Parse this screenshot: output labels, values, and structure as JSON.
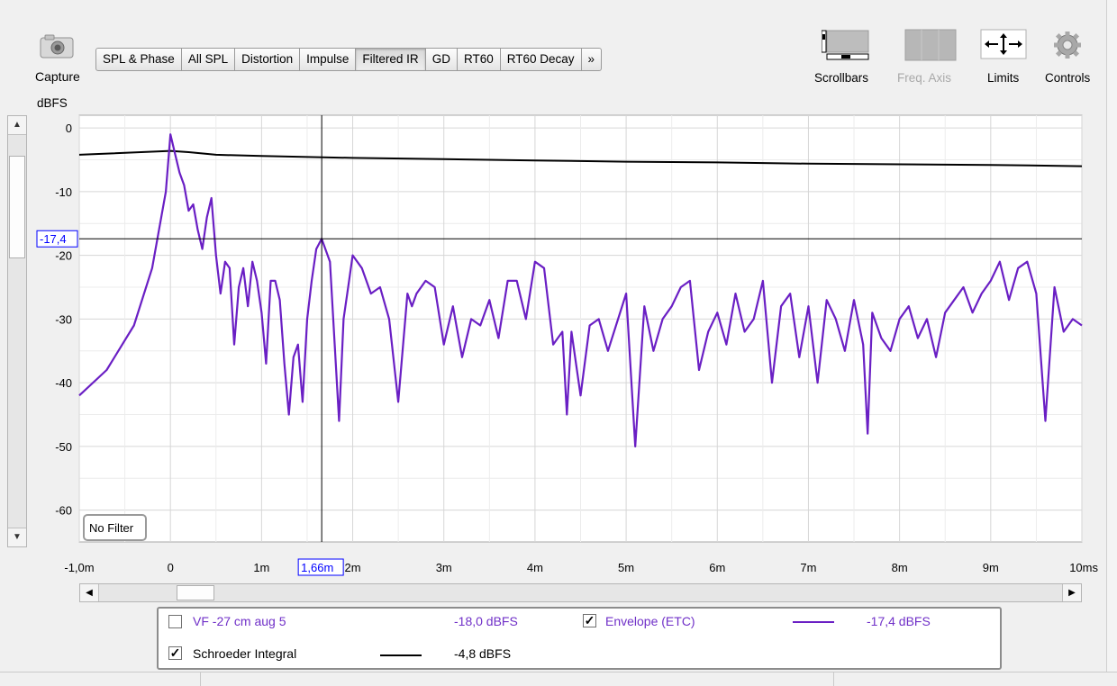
{
  "capture": {
    "label": "Capture",
    "icon": "camera-icon"
  },
  "tabs": [
    {
      "label": "SPL & Phase",
      "active": false
    },
    {
      "label": "All SPL",
      "active": false
    },
    {
      "label": "Distortion",
      "active": false
    },
    {
      "label": "Impulse",
      "active": false
    },
    {
      "label": "Filtered IR",
      "active": true
    },
    {
      "label": "GD",
      "active": false
    },
    {
      "label": "RT60",
      "active": false
    },
    {
      "label": "RT60 Decay",
      "active": false
    },
    {
      "label": "»",
      "active": false
    }
  ],
  "toolbar": {
    "scrollbars": "Scrollbars",
    "freq_axis": "Freq. Axis",
    "limits": "Limits",
    "controls": "Controls"
  },
  "plot": {
    "y_unit": "dBFS",
    "filter_label": "No Filter",
    "cursor_y_label": "-17,4",
    "cursor_x_label": "1,66m",
    "y_ticks": [
      "0",
      "-10",
      "-20",
      "-30",
      "-40",
      "-50",
      "-60"
    ],
    "x_ticks": [
      "-1,0m",
      "0",
      "1m",
      "2m",
      "3m",
      "4m",
      "5m",
      "6m",
      "7m",
      "8m",
      "9m",
      "10ms"
    ],
    "colors": {
      "envelope": "#6a1fc4",
      "schroeder": "#000000",
      "cursor_box": "#0000ff"
    }
  },
  "legend": {
    "vf": {
      "label": "VF -27 cm aug 5",
      "value": "-18,0 dBFS",
      "checked": false,
      "color": "#7030c8"
    },
    "envelope": {
      "label": "Envelope (ETC)",
      "value": "-17,4 dBFS",
      "checked": true,
      "color": "#7030c8"
    },
    "schroeder": {
      "label": "Schroeder Integral",
      "value": "-4,8 dBFS",
      "checked": true,
      "color": "#000000"
    }
  },
  "chart_data": {
    "type": "line",
    "xlabel": "",
    "ylabel": "dBFS",
    "xlim": [
      -1.0,
      10.0
    ],
    "ylim": [
      -65,
      2
    ],
    "series": [
      {
        "name": "Envelope (ETC)",
        "x": [
          -1.0,
          -0.7,
          -0.4,
          -0.2,
          -0.05,
          0.0,
          0.05,
          0.1,
          0.15,
          0.2,
          0.25,
          0.3,
          0.35,
          0.4,
          0.45,
          0.5,
          0.55,
          0.6,
          0.65,
          0.7,
          0.75,
          0.8,
          0.85,
          0.9,
          0.95,
          1.0,
          1.05,
          1.1,
          1.15,
          1.2,
          1.25,
          1.3,
          1.35,
          1.4,
          1.45,
          1.5,
          1.55,
          1.6,
          1.66,
          1.75,
          1.85,
          1.9,
          1.95,
          2.0,
          2.1,
          2.2,
          2.3,
          2.4,
          2.5,
          2.6,
          2.65,
          2.7,
          2.8,
          2.9,
          3.0,
          3.1,
          3.2,
          3.3,
          3.4,
          3.5,
          3.6,
          3.7,
          3.8,
          3.9,
          4.0,
          4.1,
          4.2,
          4.3,
          4.35,
          4.4,
          4.5,
          4.6,
          4.7,
          4.8,
          5.0,
          5.1,
          5.2,
          5.3,
          5.4,
          5.5,
          5.6,
          5.7,
          5.8,
          5.9,
          6.0,
          6.1,
          6.2,
          6.3,
          6.4,
          6.5,
          6.6,
          6.7,
          6.8,
          6.9,
          7.0,
          7.1,
          7.2,
          7.3,
          7.4,
          7.5,
          7.6,
          7.65,
          7.7,
          7.8,
          7.9,
          8.0,
          8.1,
          8.2,
          8.3,
          8.4,
          8.5,
          8.6,
          8.7,
          8.8,
          8.9,
          9.0,
          9.1,
          9.2,
          9.3,
          9.4,
          9.5,
          9.6,
          9.7,
          9.8,
          9.9,
          10.0
        ],
        "y": [
          -42,
          -38,
          -31,
          -22,
          -10,
          -1,
          -4,
          -7,
          -9,
          -13,
          -12,
          -16,
          -19,
          -14,
          -11,
          -20,
          -26,
          -21,
          -22,
          -34,
          -25,
          -22,
          -28,
          -21,
          -24,
          -29,
          -37,
          -24,
          -24,
          -27,
          -37,
          -45,
          -36,
          -34,
          -43,
          -30,
          -24,
          -19,
          -17.4,
          -21,
          -46,
          -30,
          -25,
          -20,
          -22,
          -26,
          -25,
          -30,
          -43,
          -26,
          -28,
          -26,
          -24,
          -25,
          -34,
          -28,
          -36,
          -30,
          -31,
          -27,
          -33,
          -24,
          -24,
          -30,
          -21,
          -22,
          -34,
          -32,
          -45,
          -32,
          -42,
          -31,
          -30,
          -35,
          -26,
          -50,
          -28,
          -35,
          -30,
          -28,
          -25,
          -24,
          -38,
          -32,
          -29,
          -34,
          -26,
          -32,
          -30,
          -24,
          -40,
          -28,
          -26,
          -36,
          -28,
          -40,
          -27,
          -30,
          -35,
          -27,
          -34,
          -48,
          -29,
          -33,
          -35,
          -30,
          -28,
          -33,
          -30,
          -36,
          -29,
          -27,
          -25,
          -29,
          -26,
          -24,
          -21,
          -27,
          -22,
          -21,
          -26,
          -46,
          -25,
          -32,
          -30,
          -31
        ]
      },
      {
        "name": "Schroeder Integral",
        "x": [
          -1.0,
          0.0,
          0.2,
          0.5,
          1.0,
          2.0,
          3.0,
          4.0,
          5.0,
          6.0,
          7.0,
          8.0,
          9.0,
          10.0
        ],
        "y": [
          -4.2,
          -3.6,
          -3.8,
          -4.2,
          -4.4,
          -4.7,
          -4.9,
          -5.1,
          -5.3,
          -5.4,
          -5.6,
          -5.7,
          -5.8,
          -6.0
        ]
      }
    ]
  }
}
